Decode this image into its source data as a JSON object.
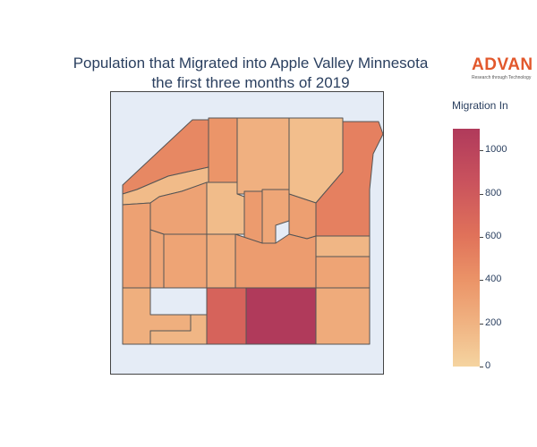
{
  "title": {
    "line1": "Population that Migrated into Apple Valley Minnesota",
    "line2": "the first three months of 2019"
  },
  "logo": {
    "word": "ADVAN",
    "tagline": "Research through Technology"
  },
  "colorbar": {
    "title": "Migration In",
    "ticks": [
      "1000",
      "800",
      "600",
      "400",
      "200",
      "0"
    ],
    "tick_values": [
      1000,
      800,
      600,
      400,
      200,
      0
    ],
    "range": [
      0,
      1100
    ],
    "colorscale": [
      "#f5d4a0",
      "#f0b382",
      "#eb9468",
      "#e0725a",
      "#c9525d",
      "#b03a5b"
    ]
  },
  "chart_data": {
    "type": "choropleth",
    "title": "Population that Migrated into Apple Valley Minnesota the first three months of 2019",
    "colorbar_title": "Migration In",
    "value_range": [
      0,
      1100
    ],
    "regions": [
      {
        "id": "north-west-strip",
        "value": 520
      },
      {
        "id": "north-col-2",
        "value": 430
      },
      {
        "id": "north-col-3",
        "value": 240
      },
      {
        "id": "north-east-tract",
        "value": 150
      },
      {
        "id": "east-tall",
        "value": 570
      },
      {
        "id": "center-west-arc",
        "value": 170
      },
      {
        "id": "center-left",
        "value": 340
      },
      {
        "id": "center-small",
        "value": 160
      },
      {
        "id": "center-a",
        "value": 390
      },
      {
        "id": "center-b",
        "value": 310
      },
      {
        "id": "center-c",
        "value": 360
      },
      {
        "id": "center-d",
        "value": 200
      },
      {
        "id": "west-col",
        "value": 350
      },
      {
        "id": "mid-1",
        "value": 310
      },
      {
        "id": "mid-2",
        "value": 330
      },
      {
        "id": "mid-3",
        "value": 270
      },
      {
        "id": "mid-4",
        "value": 380
      },
      {
        "id": "mid-5",
        "value": 330
      },
      {
        "id": "east-small",
        "value": 150
      },
      {
        "id": "east-mid",
        "value": 420
      },
      {
        "id": "south-west",
        "value": 250
      },
      {
        "id": "south-west-b",
        "value": 200
      },
      {
        "id": "south-center-1",
        "value": 760
      },
      {
        "id": "south-center-2",
        "value": 1100
      },
      {
        "id": "south-east",
        "value": 280
      }
    ]
  }
}
